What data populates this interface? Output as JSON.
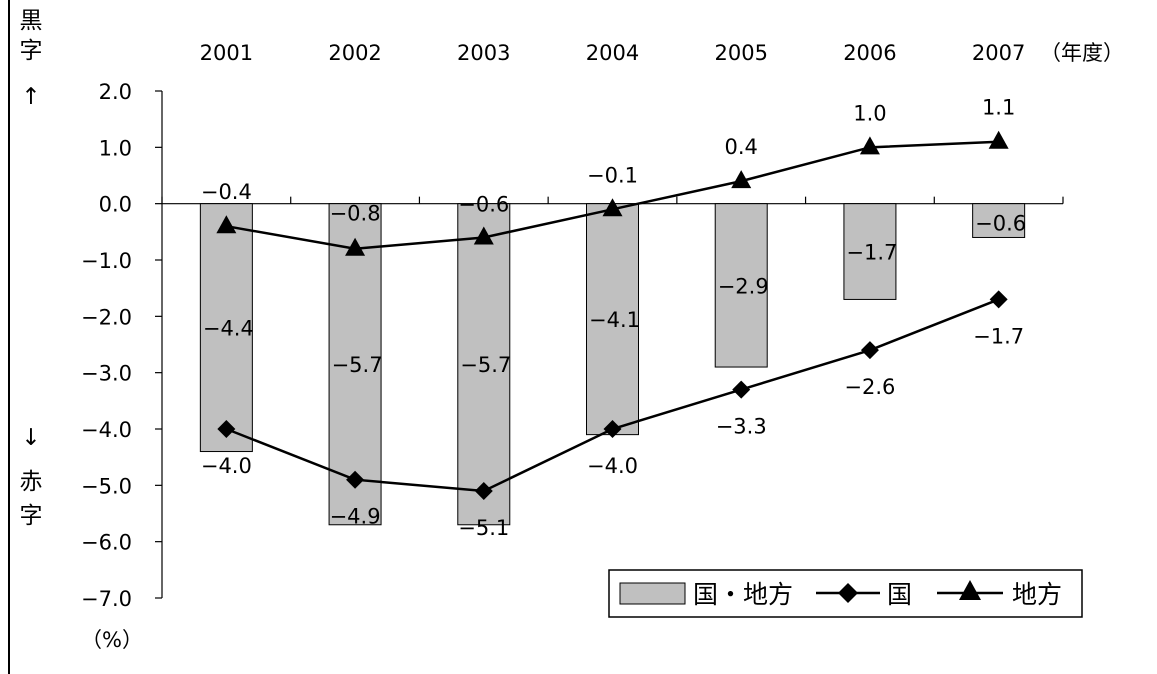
{
  "chart_data": {
    "type": "bar",
    "categories": [
      "2001",
      "2002",
      "2003",
      "2004",
      "2005",
      "2006",
      "2007"
    ],
    "x_unit_label": "（年度）",
    "y_unit_label": "（%）",
    "y_ticks": [
      "2.0",
      "1.0",
      "0.0",
      "−1.0",
      "−2.0",
      "−3.0",
      "−4.0",
      "−5.0",
      "−6.0",
      "−7.0"
    ],
    "ylim": [
      -7,
      2
    ],
    "ylabel_top": [
      "黒",
      "字",
      "↑"
    ],
    "ylabel_bottom": [
      "↓",
      "赤",
      "字"
    ],
    "series": [
      {
        "name": "国・地方",
        "kind": "bar",
        "color": "#c0c0c0",
        "values": [
          -4.4,
          -5.7,
          -5.7,
          -4.1,
          -2.9,
          -1.7,
          -0.6
        ],
        "labels": [
          "−4.4",
          "−5.7",
          "−5.7",
          "−4.1",
          "−2.9",
          "−1.7",
          "−0.6"
        ]
      },
      {
        "name": "国",
        "kind": "line",
        "marker": "diamond",
        "color": "#000000",
        "values": [
          -4.0,
          -4.9,
          -5.1,
          -4.0,
          -3.3,
          -2.6,
          -1.7
        ],
        "labels": [
          "−4.0",
          "−4.9",
          "−5.1",
          "−4.0",
          "−3.3",
          "−2.6",
          "−1.7"
        ]
      },
      {
        "name": "地方",
        "kind": "line",
        "marker": "triangle",
        "color": "#000000",
        "values": [
          -0.4,
          -0.8,
          -0.6,
          -0.1,
          0.4,
          1.0,
          1.1
        ],
        "labels": [
          "−0.4",
          "−0.8",
          "−0.6",
          "−0.1",
          "0.4",
          "1.0",
          "1.1"
        ]
      }
    ],
    "legend": {
      "position": "bottom-right",
      "entries": [
        "国・地方",
        "国",
        "地方"
      ]
    },
    "grid": false
  }
}
